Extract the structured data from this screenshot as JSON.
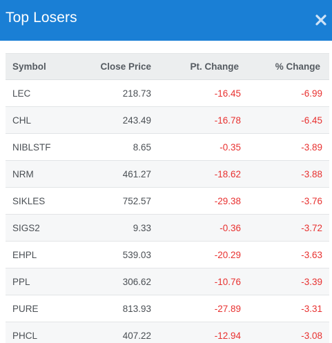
{
  "header": {
    "title": "Top Losers",
    "close_icon": "close-icon",
    "accent_color": "#1a7fd5"
  },
  "table": {
    "columns": [
      "Symbol",
      "Close Price",
      "Pt. Change",
      "% Change"
    ],
    "negative_color": "#e8302f",
    "rows": [
      {
        "symbol": "LEC",
        "close": "218.73",
        "pt": "-16.45",
        "pct": "-6.99"
      },
      {
        "symbol": "CHL",
        "close": "243.49",
        "pt": "-16.78",
        "pct": "-6.45"
      },
      {
        "symbol": "NIBLSTF",
        "close": "8.65",
        "pt": "-0.35",
        "pct": "-3.89"
      },
      {
        "symbol": "NRM",
        "close": "461.27",
        "pt": "-18.62",
        "pct": "-3.88"
      },
      {
        "symbol": "SIKLES",
        "close": "752.57",
        "pt": "-29.38",
        "pct": "-3.76"
      },
      {
        "symbol": "SIGS2",
        "close": "9.33",
        "pt": "-0.36",
        "pct": "-3.72"
      },
      {
        "symbol": "EHPL",
        "close": "539.03",
        "pt": "-20.29",
        "pct": "-3.63"
      },
      {
        "symbol": "PPL",
        "close": "306.62",
        "pt": "-10.76",
        "pct": "-3.39"
      },
      {
        "symbol": "PURE",
        "close": "813.93",
        "pt": "-27.89",
        "pct": "-3.31"
      },
      {
        "symbol": "PHCL",
        "close": "407.22",
        "pt": "-12.94",
        "pct": "-3.08"
      }
    ]
  }
}
